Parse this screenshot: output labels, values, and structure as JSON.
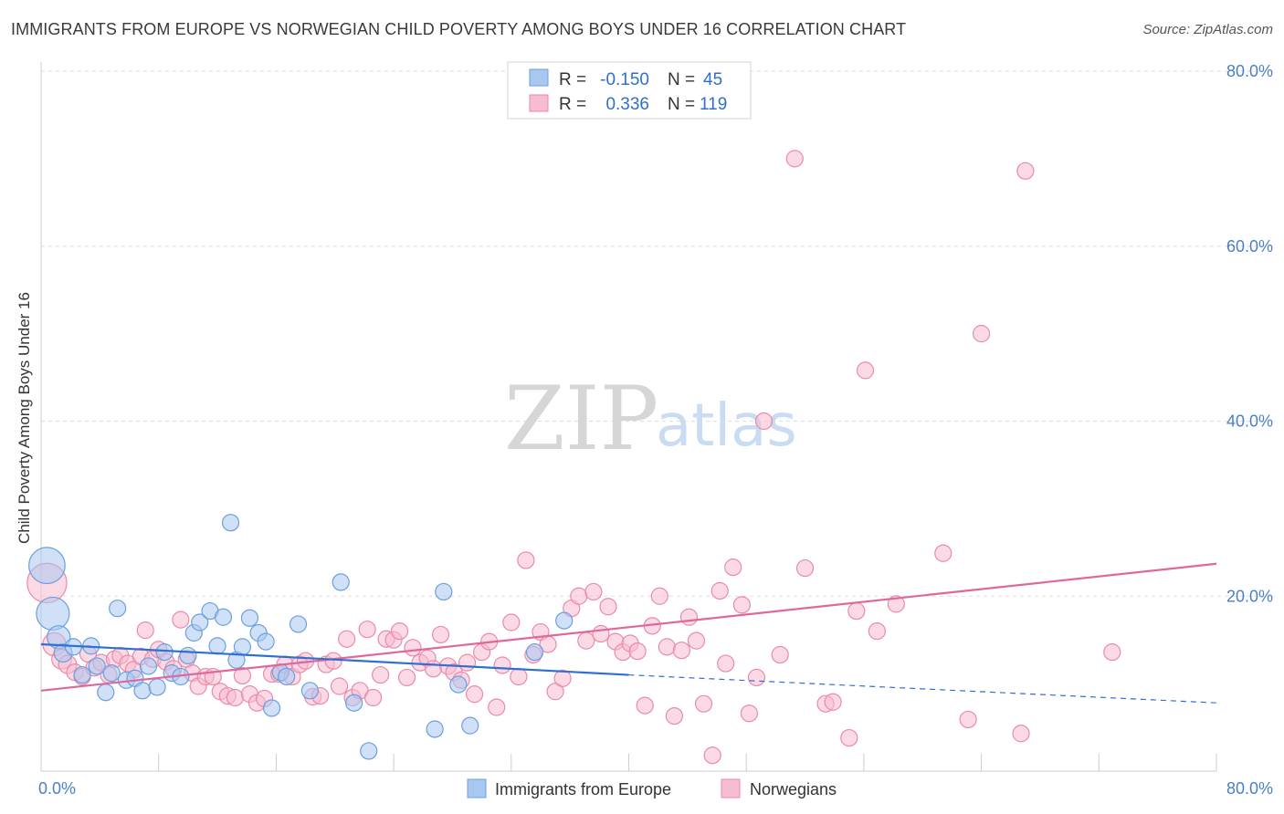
{
  "title": "IMMIGRANTS FROM EUROPE VS NORWEGIAN CHILD POVERTY AMONG BOYS UNDER 16 CORRELATION CHART",
  "source": "Source: ZipAtlas.com",
  "watermark": {
    "zip": "ZIP",
    "atlas": "atlas"
  },
  "colors": {
    "blue_fill": "#a9c8f0",
    "blue_stroke": "#6a9fe0",
    "blue_line": "#2f6fd0",
    "pink_fill": "#f7bcd0",
    "pink_stroke": "#e98aab",
    "pink_line": "#e0679a",
    "grid": "#dddddd",
    "axis_text": "#4a7fc8"
  },
  "stats": {
    "r_label": "R =",
    "n_label": "N =",
    "blue": {
      "r": "-0.150",
      "n": "45"
    },
    "pink": {
      "r": "0.336",
      "n": "119"
    }
  },
  "chart_data": {
    "type": "scatter",
    "title": "IMMIGRANTS FROM EUROPE VS NORWEGIAN CHILD POVERTY AMONG BOYS UNDER 16 CORRELATION CHART",
    "xlabel": "",
    "ylabel": "Child Poverty Among Boys Under 16",
    "xlim": [
      0,
      80
    ],
    "ylim": [
      0,
      80
    ],
    "x_tick_labels": [
      "0.0%",
      "80.0%"
    ],
    "y_ticks": [
      20,
      40,
      60,
      80
    ],
    "y_tick_labels": [
      "20.0%",
      "40.0%",
      "60.0%",
      "80.0%"
    ],
    "legend_position": "bottom-center",
    "series": [
      {
        "name": "Immigrants from Europe",
        "color": "#a9c8f0",
        "trend": {
          "x0": 0,
          "y0": 14.5,
          "x1": 40,
          "y1": 11.0,
          "dash_to_x": 80,
          "dash_to_y": 7.8
        },
        "points": [
          {
            "x": 0.4,
            "y": 23.5,
            "s": 2.2
          },
          {
            "x": 0.8,
            "y": 18.0,
            "s": 2.0
          },
          {
            "x": 1.2,
            "y": 15.3,
            "s": 1.4
          },
          {
            "x": 1.5,
            "y": 13.5,
            "s": 1.1
          },
          {
            "x": 2.2,
            "y": 14.2,
            "s": 1.0
          },
          {
            "x": 2.8,
            "y": 11.0,
            "s": 1.0
          },
          {
            "x": 3.4,
            "y": 14.3,
            "s": 1.0
          },
          {
            "x": 3.8,
            "y": 12.0,
            "s": 1.0
          },
          {
            "x": 4.4,
            "y": 9.0,
            "s": 1.0
          },
          {
            "x": 4.8,
            "y": 11.2,
            "s": 1.0
          },
          {
            "x": 5.2,
            "y": 18.6,
            "s": 1.0
          },
          {
            "x": 5.8,
            "y": 10.4,
            "s": 1.0
          },
          {
            "x": 6.4,
            "y": 10.6,
            "s": 1.0
          },
          {
            "x": 6.9,
            "y": 9.2,
            "s": 1.0
          },
          {
            "x": 7.3,
            "y": 12.0,
            "s": 1.0
          },
          {
            "x": 7.9,
            "y": 9.6,
            "s": 1.0
          },
          {
            "x": 8.4,
            "y": 13.6,
            "s": 1.0
          },
          {
            "x": 8.9,
            "y": 11.2,
            "s": 1.0
          },
          {
            "x": 9.5,
            "y": 10.8,
            "s": 1.0
          },
          {
            "x": 10.0,
            "y": 13.2,
            "s": 1.0
          },
          {
            "x": 10.4,
            "y": 15.8,
            "s": 1.0
          },
          {
            "x": 10.8,
            "y": 17.0,
            "s": 1.0
          },
          {
            "x": 11.5,
            "y": 18.3,
            "s": 1.0
          },
          {
            "x": 12.0,
            "y": 14.3,
            "s": 1.0
          },
          {
            "x": 12.4,
            "y": 17.6,
            "s": 1.0
          },
          {
            "x": 12.9,
            "y": 28.4,
            "s": 1.0
          },
          {
            "x": 13.3,
            "y": 12.7,
            "s": 1.0
          },
          {
            "x": 13.7,
            "y": 14.2,
            "s": 1.0
          },
          {
            "x": 14.2,
            "y": 17.5,
            "s": 1.0
          },
          {
            "x": 14.8,
            "y": 15.8,
            "s": 1.0
          },
          {
            "x": 15.3,
            "y": 14.8,
            "s": 1.0
          },
          {
            "x": 15.7,
            "y": 7.2,
            "s": 1.0
          },
          {
            "x": 16.3,
            "y": 11.3,
            "s": 1.0
          },
          {
            "x": 16.7,
            "y": 10.8,
            "s": 1.0
          },
          {
            "x": 17.5,
            "y": 16.8,
            "s": 1.0
          },
          {
            "x": 18.3,
            "y": 9.2,
            "s": 1.0
          },
          {
            "x": 20.4,
            "y": 21.6,
            "s": 1.0
          },
          {
            "x": 21.3,
            "y": 7.8,
            "s": 1.0
          },
          {
            "x": 22.3,
            "y": 2.3,
            "s": 1.0
          },
          {
            "x": 26.8,
            "y": 4.8,
            "s": 1.0
          },
          {
            "x": 27.4,
            "y": 20.5,
            "s": 1.0
          },
          {
            "x": 28.4,
            "y": 9.9,
            "s": 1.0
          },
          {
            "x": 29.2,
            "y": 5.2,
            "s": 1.0
          },
          {
            "x": 33.6,
            "y": 13.6,
            "s": 1.0
          },
          {
            "x": 35.6,
            "y": 17.2,
            "s": 1.0
          }
        ]
      },
      {
        "name": "Norwegians",
        "color": "#f7bcd0",
        "trend": {
          "x0": 0,
          "y0": 9.2,
          "x1": 80,
          "y1": 23.7
        },
        "points": [
          {
            "x": 0.4,
            "y": 21.5,
            "s": 2.4
          },
          {
            "x": 0.9,
            "y": 14.5,
            "s": 1.4
          },
          {
            "x": 1.4,
            "y": 12.8,
            "s": 1.2
          },
          {
            "x": 1.8,
            "y": 12.2,
            "s": 1.1
          },
          {
            "x": 2.3,
            "y": 11.3,
            "s": 1.0
          },
          {
            "x": 2.8,
            "y": 10.8,
            "s": 1.0
          },
          {
            "x": 3.2,
            "y": 13.4,
            "s": 1.0
          },
          {
            "x": 3.6,
            "y": 11.8,
            "s": 1.0
          },
          {
            "x": 4.1,
            "y": 12.4,
            "s": 1.0
          },
          {
            "x": 4.6,
            "y": 11.0,
            "s": 1.0
          },
          {
            "x": 5.0,
            "y": 12.8,
            "s": 1.0
          },
          {
            "x": 5.4,
            "y": 13.2,
            "s": 1.0
          },
          {
            "x": 5.9,
            "y": 12.3,
            "s": 1.0
          },
          {
            "x": 6.3,
            "y": 11.6,
            "s": 1.0
          },
          {
            "x": 6.8,
            "y": 13.1,
            "s": 1.0
          },
          {
            "x": 7.1,
            "y": 16.1,
            "s": 1.0
          },
          {
            "x": 7.6,
            "y": 12.8,
            "s": 1.0
          },
          {
            "x": 8.0,
            "y": 13.9,
            "s": 1.0
          },
          {
            "x": 8.5,
            "y": 12.5,
            "s": 1.0
          },
          {
            "x": 9.0,
            "y": 11.7,
            "s": 1.0
          },
          {
            "x": 9.5,
            "y": 17.3,
            "s": 1.0
          },
          {
            "x": 9.9,
            "y": 12.8,
            "s": 1.0
          },
          {
            "x": 10.3,
            "y": 11.2,
            "s": 1.0
          },
          {
            "x": 10.7,
            "y": 9.7,
            "s": 1.0
          },
          {
            "x": 11.2,
            "y": 10.8,
            "s": 1.0
          },
          {
            "x": 11.7,
            "y": 10.8,
            "s": 1.0
          },
          {
            "x": 12.2,
            "y": 9.1,
            "s": 1.0
          },
          {
            "x": 12.7,
            "y": 8.6,
            "s": 1.0
          },
          {
            "x": 13.2,
            "y": 8.4,
            "s": 1.0
          },
          {
            "x": 13.7,
            "y": 10.9,
            "s": 1.0
          },
          {
            "x": 14.2,
            "y": 8.8,
            "s": 1.0
          },
          {
            "x": 14.7,
            "y": 7.8,
            "s": 1.0
          },
          {
            "x": 15.2,
            "y": 8.3,
            "s": 1.0
          },
          {
            "x": 15.7,
            "y": 11.1,
            "s": 1.0
          },
          {
            "x": 16.2,
            "y": 11.1,
            "s": 1.0
          },
          {
            "x": 16.6,
            "y": 12.2,
            "s": 1.0
          },
          {
            "x": 17.1,
            "y": 10.8,
            "s": 1.0
          },
          {
            "x": 17.6,
            "y": 12.2,
            "s": 1.0
          },
          {
            "x": 18.0,
            "y": 12.6,
            "s": 1.0
          },
          {
            "x": 18.5,
            "y": 8.5,
            "s": 1.0
          },
          {
            "x": 19.0,
            "y": 8.6,
            "s": 1.0
          },
          {
            "x": 19.4,
            "y": 12.2,
            "s": 1.0
          },
          {
            "x": 19.9,
            "y": 12.6,
            "s": 1.0
          },
          {
            "x": 20.3,
            "y": 9.7,
            "s": 1.0
          },
          {
            "x": 20.8,
            "y": 15.1,
            "s": 1.0
          },
          {
            "x": 21.2,
            "y": 8.4,
            "s": 1.0
          },
          {
            "x": 21.7,
            "y": 9.2,
            "s": 1.0
          },
          {
            "x": 22.2,
            "y": 16.2,
            "s": 1.0
          },
          {
            "x": 22.6,
            "y": 8.4,
            "s": 1.0
          },
          {
            "x": 23.1,
            "y": 11.0,
            "s": 1.0
          },
          {
            "x": 23.5,
            "y": 15.1,
            "s": 1.0
          },
          {
            "x": 24.0,
            "y": 15.0,
            "s": 1.0
          },
          {
            "x": 24.4,
            "y": 16.0,
            "s": 1.0
          },
          {
            "x": 24.9,
            "y": 10.7,
            "s": 1.0
          },
          {
            "x": 25.3,
            "y": 14.1,
            "s": 1.0
          },
          {
            "x": 25.8,
            "y": 12.4,
            "s": 1.0
          },
          {
            "x": 26.3,
            "y": 12.9,
            "s": 1.0
          },
          {
            "x": 26.7,
            "y": 11.7,
            "s": 1.0
          },
          {
            "x": 27.2,
            "y": 15.6,
            "s": 1.0
          },
          {
            "x": 27.7,
            "y": 12.0,
            "s": 1.0
          },
          {
            "x": 28.1,
            "y": 11.3,
            "s": 1.0
          },
          {
            "x": 28.6,
            "y": 10.4,
            "s": 1.0
          },
          {
            "x": 29.0,
            "y": 12.4,
            "s": 1.0
          },
          {
            "x": 29.5,
            "y": 8.8,
            "s": 1.0
          },
          {
            "x": 30.0,
            "y": 13.6,
            "s": 1.0
          },
          {
            "x": 30.5,
            "y": 14.8,
            "s": 1.0
          },
          {
            "x": 31.0,
            "y": 7.3,
            "s": 1.0
          },
          {
            "x": 31.4,
            "y": 12.1,
            "s": 1.0
          },
          {
            "x": 32.0,
            "y": 17.0,
            "s": 1.0
          },
          {
            "x": 32.5,
            "y": 10.8,
            "s": 1.0
          },
          {
            "x": 33.0,
            "y": 24.1,
            "s": 1.0
          },
          {
            "x": 33.5,
            "y": 13.3,
            "s": 1.0
          },
          {
            "x": 34.0,
            "y": 15.9,
            "s": 1.0
          },
          {
            "x": 34.5,
            "y": 14.5,
            "s": 1.0
          },
          {
            "x": 35.0,
            "y": 9.1,
            "s": 1.0
          },
          {
            "x": 35.5,
            "y": 10.6,
            "s": 1.0
          },
          {
            "x": 36.1,
            "y": 18.6,
            "s": 1.0
          },
          {
            "x": 36.6,
            "y": 20.0,
            "s": 1.0
          },
          {
            "x": 37.1,
            "y": 14.9,
            "s": 1.0
          },
          {
            "x": 37.6,
            "y": 20.5,
            "s": 1.0
          },
          {
            "x": 38.1,
            "y": 15.7,
            "s": 1.0
          },
          {
            "x": 38.6,
            "y": 18.8,
            "s": 1.0
          },
          {
            "x": 39.1,
            "y": 14.8,
            "s": 1.0
          },
          {
            "x": 39.6,
            "y": 13.6,
            "s": 1.0
          },
          {
            "x": 40.1,
            "y": 14.6,
            "s": 1.0
          },
          {
            "x": 40.6,
            "y": 13.7,
            "s": 1.0
          },
          {
            "x": 41.1,
            "y": 7.5,
            "s": 1.0
          },
          {
            "x": 41.6,
            "y": 16.6,
            "s": 1.0
          },
          {
            "x": 42.1,
            "y": 20.0,
            "s": 1.0
          },
          {
            "x": 42.6,
            "y": 14.2,
            "s": 1.0
          },
          {
            "x": 43.1,
            "y": 6.3,
            "s": 1.0
          },
          {
            "x": 43.6,
            "y": 13.8,
            "s": 1.0
          },
          {
            "x": 44.1,
            "y": 17.6,
            "s": 1.0
          },
          {
            "x": 44.6,
            "y": 14.9,
            "s": 1.0
          },
          {
            "x": 45.1,
            "y": 7.7,
            "s": 1.0
          },
          {
            "x": 45.7,
            "y": 1.8,
            "s": 1.0
          },
          {
            "x": 46.2,
            "y": 20.6,
            "s": 1.0
          },
          {
            "x": 46.6,
            "y": 12.3,
            "s": 1.0
          },
          {
            "x": 47.1,
            "y": 23.3,
            "s": 1.0
          },
          {
            "x": 47.7,
            "y": 19.0,
            "s": 1.0
          },
          {
            "x": 48.2,
            "y": 6.6,
            "s": 1.0
          },
          {
            "x": 48.7,
            "y": 10.7,
            "s": 1.0
          },
          {
            "x": 49.2,
            "y": 40.0,
            "s": 1.0
          },
          {
            "x": 50.3,
            "y": 13.3,
            "s": 1.0
          },
          {
            "x": 51.3,
            "y": 70.0,
            "s": 1.0
          },
          {
            "x": 52.0,
            "y": 23.2,
            "s": 1.0
          },
          {
            "x": 53.4,
            "y": 7.7,
            "s": 1.0
          },
          {
            "x": 53.9,
            "y": 7.9,
            "s": 1.0
          },
          {
            "x": 55.0,
            "y": 3.8,
            "s": 1.0
          },
          {
            "x": 55.5,
            "y": 18.3,
            "s": 1.0
          },
          {
            "x": 56.1,
            "y": 45.8,
            "s": 1.0
          },
          {
            "x": 56.9,
            "y": 16.0,
            "s": 1.0
          },
          {
            "x": 58.2,
            "y": 19.1,
            "s": 1.0
          },
          {
            "x": 61.4,
            "y": 24.9,
            "s": 1.0
          },
          {
            "x": 63.1,
            "y": 5.9,
            "s": 1.0
          },
          {
            "x": 64.0,
            "y": 50.0,
            "s": 1.0
          },
          {
            "x": 66.7,
            "y": 4.3,
            "s": 1.0
          },
          {
            "x": 67.0,
            "y": 68.6,
            "s": 1.0
          },
          {
            "x": 72.9,
            "y": 13.6,
            "s": 1.0
          }
        ]
      }
    ]
  }
}
